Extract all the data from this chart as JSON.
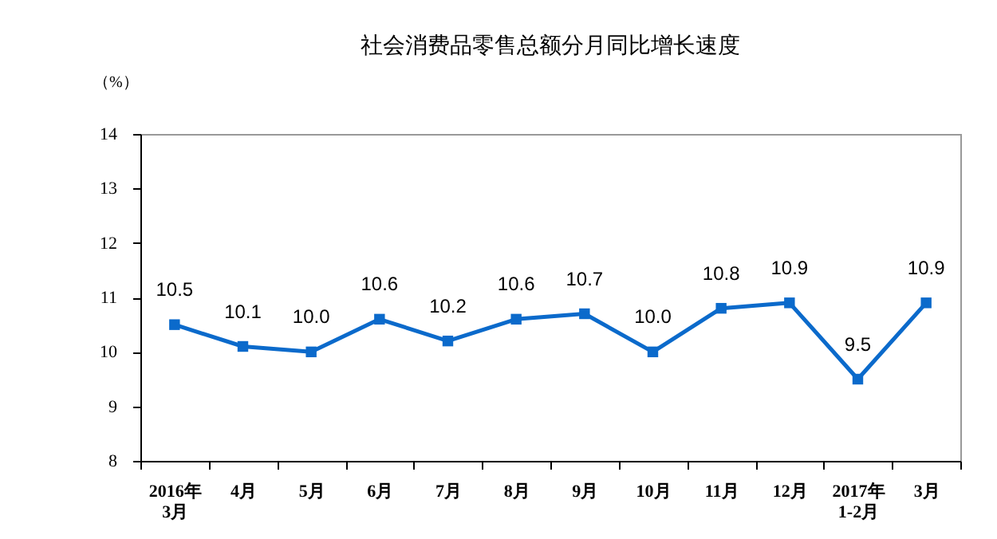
{
  "chart_data": {
    "type": "line",
    "title": "社会消费品零售总额分月同比增长速度",
    "ylabel": "（%）",
    "categories": [
      "2016年\n3月",
      "4月",
      "5月",
      "6月",
      "7月",
      "8月",
      "9月",
      "10月",
      "11月",
      "12月",
      "2017年\n1-2月",
      "3月"
    ],
    "series": [
      {
        "color": "#0b6acb",
        "values": [
          10.5,
          10.1,
          10.0,
          10.6,
          10.2,
          10.6,
          10.7,
          10.0,
          10.8,
          10.9,
          9.5,
          10.9
        ],
        "value_labels": [
          "10.5",
          "10.1",
          "10.0",
          "10.6",
          "10.2",
          "10.6",
          "10.7",
          "10.0",
          "10.8",
          "10.9",
          "9.5",
          "10.9"
        ]
      }
    ],
    "ylim": [
      8,
      14
    ],
    "yticks": [
      8,
      9,
      10,
      11,
      12,
      13,
      14
    ],
    "grid": false,
    "marker": "square",
    "line_style": "solid",
    "legend": false
  }
}
